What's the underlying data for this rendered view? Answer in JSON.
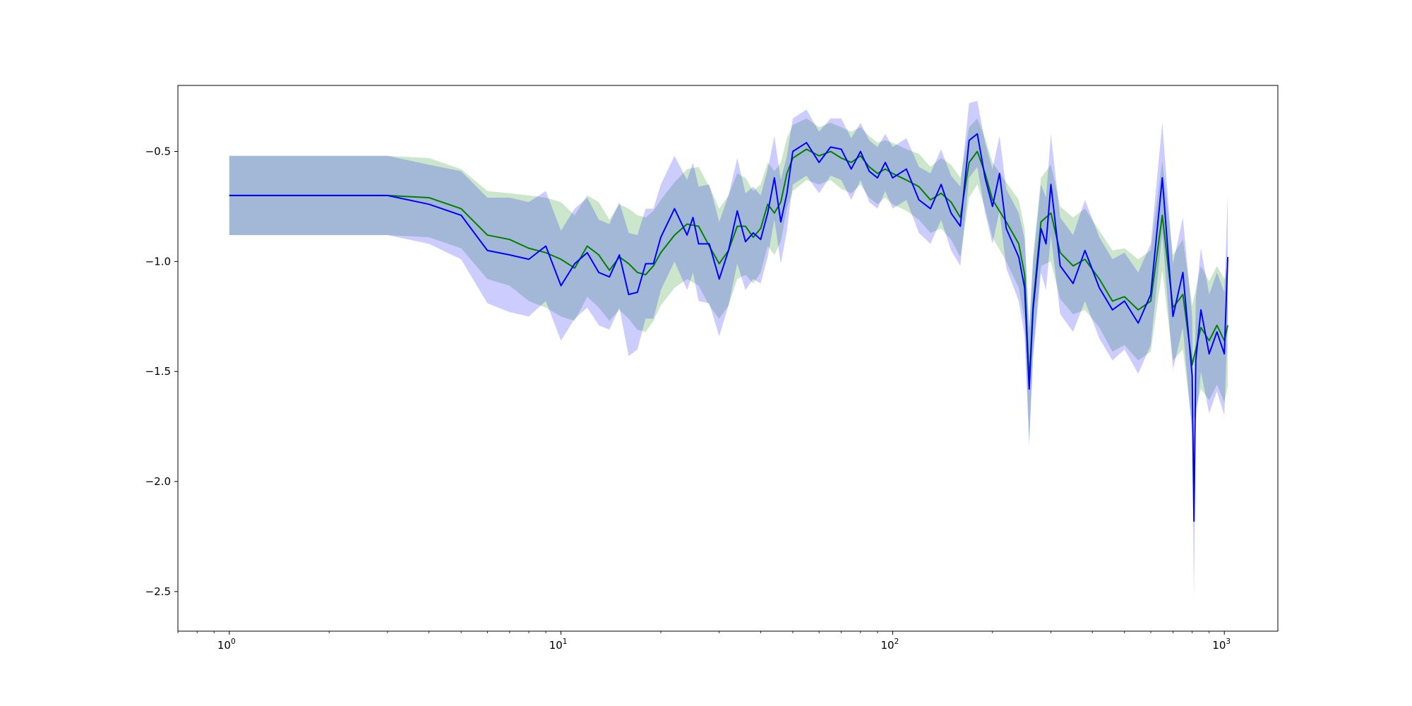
{
  "chart_data": {
    "type": "line",
    "title": "",
    "xlabel": "",
    "ylabel": "",
    "xscale": "log",
    "xlim": [
      0.7,
      1450
    ],
    "ylim": [
      -2.68,
      -0.2
    ],
    "grid": false,
    "legend": "none",
    "yticks": [
      -2.5,
      -2.0,
      -1.5,
      -1.0,
      -0.5
    ],
    "ytick_labels": [
      "−2.5",
      "−2.0",
      "−1.5",
      "−1.0",
      "−0.5"
    ],
    "xticks": [
      {
        "value": 1,
        "base": "10",
        "exp": "0"
      },
      {
        "value": 10,
        "base": "10",
        "exp": "1"
      },
      {
        "value": 100,
        "base": "10",
        "exp": "2"
      },
      {
        "value": 1000,
        "base": "10",
        "exp": "3"
      }
    ],
    "series": [
      {
        "color": "#008000",
        "band_color": "#008000",
        "band_opacity": 0.2,
        "points": [
          [
            1,
            -0.7,
            0.18
          ],
          [
            2,
            -0.7,
            0.18
          ],
          [
            3,
            -0.7,
            0.18
          ],
          [
            4,
            -0.71,
            0.18
          ],
          [
            5,
            -0.76,
            0.18
          ],
          [
            6,
            -0.88,
            0.2
          ],
          [
            7,
            -0.9,
            0.21
          ],
          [
            8,
            -0.94,
            0.24
          ],
          [
            9,
            -0.96,
            0.25
          ],
          [
            10,
            -0.99,
            0.26
          ],
          [
            11,
            -1.03,
            0.24
          ],
          [
            12,
            -0.93,
            0.23
          ],
          [
            13,
            -0.97,
            0.24
          ],
          [
            14,
            -1.04,
            0.23
          ],
          [
            15,
            -0.98,
            0.24
          ],
          [
            16,
            -1.01,
            0.25
          ],
          [
            17,
            -1.05,
            0.26
          ],
          [
            18,
            -1.06,
            0.26
          ],
          [
            19,
            -1.02,
            0.25
          ],
          [
            20,
            -0.96,
            0.24
          ],
          [
            22,
            -0.88,
            0.24
          ],
          [
            24,
            -0.83,
            0.25
          ],
          [
            26,
            -0.84,
            0.27
          ],
          [
            28,
            -0.93,
            0.27
          ],
          [
            30,
            -1.01,
            0.25
          ],
          [
            32,
            -0.95,
            0.25
          ],
          [
            34,
            -0.84,
            0.24
          ],
          [
            36,
            -0.84,
            0.22
          ],
          [
            38,
            -0.89,
            0.21
          ],
          [
            40,
            -0.85,
            0.2
          ],
          [
            42,
            -0.74,
            0.19
          ],
          [
            44,
            -0.78,
            0.19
          ],
          [
            46,
            -0.73,
            0.18
          ],
          [
            48,
            -0.6,
            0.16
          ],
          [
            50,
            -0.53,
            0.15
          ],
          [
            55,
            -0.49,
            0.14
          ],
          [
            60,
            -0.52,
            0.13
          ],
          [
            65,
            -0.5,
            0.13
          ],
          [
            70,
            -0.53,
            0.14
          ],
          [
            75,
            -0.55,
            0.14
          ],
          [
            80,
            -0.52,
            0.13
          ],
          [
            85,
            -0.57,
            0.14
          ],
          [
            90,
            -0.6,
            0.14
          ],
          [
            95,
            -0.58,
            0.13
          ],
          [
            100,
            -0.6,
            0.14
          ],
          [
            110,
            -0.63,
            0.14
          ],
          [
            120,
            -0.66,
            0.15
          ],
          [
            130,
            -0.72,
            0.15
          ],
          [
            140,
            -0.69,
            0.16
          ],
          [
            150,
            -0.73,
            0.17
          ],
          [
            160,
            -0.8,
            0.18
          ],
          [
            170,
            -0.55,
            0.16
          ],
          [
            180,
            -0.5,
            0.15
          ],
          [
            190,
            -0.6,
            0.16
          ],
          [
            200,
            -0.72,
            0.17
          ],
          [
            220,
            -0.82,
            0.18
          ],
          [
            240,
            -0.92,
            0.2
          ],
          [
            250,
            -1.06,
            0.21
          ],
          [
            258,
            -1.55,
            0.25
          ],
          [
            265,
            -1.2,
            0.22
          ],
          [
            280,
            -0.82,
            0.2
          ],
          [
            300,
            -0.78,
            0.22
          ],
          [
            320,
            -0.96,
            0.21
          ],
          [
            350,
            -1.02,
            0.22
          ],
          [
            380,
            -0.99,
            0.23
          ],
          [
            420,
            -1.08,
            0.22
          ],
          [
            460,
            -1.18,
            0.23
          ],
          [
            500,
            -1.16,
            0.22
          ],
          [
            550,
            -1.22,
            0.23
          ],
          [
            600,
            -1.18,
            0.23
          ],
          [
            650,
            -0.79,
            0.25
          ],
          [
            700,
            -1.21,
            0.24
          ],
          [
            750,
            -1.15,
            0.25
          ],
          [
            800,
            -1.47,
            0.27
          ],
          [
            850,
            -1.3,
            0.28
          ],
          [
            900,
            -1.36,
            0.27
          ],
          [
            950,
            -1.29,
            0.27
          ],
          [
            1000,
            -1.36,
            0.28
          ],
          [
            1024,
            -1.29,
            0.28
          ]
        ]
      },
      {
        "color": "#0000ff",
        "band_color": "#0000ff",
        "band_opacity": 0.2,
        "points": [
          [
            1,
            -0.7,
            0.18
          ],
          [
            2,
            -0.7,
            0.18
          ],
          [
            3,
            -0.7,
            0.18
          ],
          [
            4,
            -0.74,
            0.18
          ],
          [
            5,
            -0.79,
            0.2
          ],
          [
            6,
            -0.95,
            0.24
          ],
          [
            7,
            -0.97,
            0.26
          ],
          [
            8,
            -0.99,
            0.26
          ],
          [
            9,
            -0.93,
            0.25
          ],
          [
            10,
            -1.11,
            0.25
          ],
          [
            11,
            -1.01,
            0.25
          ],
          [
            12,
            -0.96,
            0.25
          ],
          [
            13,
            -1.05,
            0.24
          ],
          [
            14,
            -1.07,
            0.24
          ],
          [
            15,
            -0.97,
            0.24
          ],
          [
            16,
            -1.15,
            0.28
          ],
          [
            17,
            -1.14,
            0.26
          ],
          [
            18,
            -1.01,
            0.25
          ],
          [
            19,
            -1.01,
            0.25
          ],
          [
            20,
            -0.89,
            0.24
          ],
          [
            22,
            -0.76,
            0.24
          ],
          [
            24,
            -0.88,
            0.25
          ],
          [
            25,
            -0.8,
            0.25
          ],
          [
            26,
            -0.92,
            0.26
          ],
          [
            28,
            -0.92,
            0.27
          ],
          [
            30,
            -1.08,
            0.26
          ],
          [
            32,
            -0.95,
            0.25
          ],
          [
            34,
            -0.77,
            0.24
          ],
          [
            36,
            -0.91,
            0.22
          ],
          [
            38,
            -0.87,
            0.21
          ],
          [
            40,
            -0.9,
            0.2
          ],
          [
            42,
            -0.78,
            0.2
          ],
          [
            44,
            -0.62,
            0.19
          ],
          [
            46,
            -0.82,
            0.19
          ],
          [
            48,
            -0.69,
            0.17
          ],
          [
            50,
            -0.5,
            0.15
          ],
          [
            55,
            -0.46,
            0.15
          ],
          [
            60,
            -0.55,
            0.14
          ],
          [
            65,
            -0.48,
            0.13
          ],
          [
            70,
            -0.49,
            0.14
          ],
          [
            75,
            -0.58,
            0.14
          ],
          [
            80,
            -0.5,
            0.13
          ],
          [
            85,
            -0.59,
            0.14
          ],
          [
            90,
            -0.62,
            0.14
          ],
          [
            95,
            -0.55,
            0.13
          ],
          [
            100,
            -0.62,
            0.14
          ],
          [
            110,
            -0.58,
            0.14
          ],
          [
            120,
            -0.72,
            0.15
          ],
          [
            130,
            -0.76,
            0.16
          ],
          [
            140,
            -0.65,
            0.16
          ],
          [
            150,
            -0.78,
            0.17
          ],
          [
            160,
            -0.84,
            0.18
          ],
          [
            170,
            -0.45,
            0.17
          ],
          [
            180,
            -0.42,
            0.15
          ],
          [
            190,
            -0.62,
            0.16
          ],
          [
            200,
            -0.75,
            0.17
          ],
          [
            210,
            -0.6,
            0.17
          ],
          [
            220,
            -0.85,
            0.18
          ],
          [
            240,
            -0.98,
            0.2
          ],
          [
            250,
            -1.12,
            0.22
          ],
          [
            258,
            -1.58,
            0.26
          ],
          [
            265,
            -1.22,
            0.22
          ],
          [
            280,
            -0.85,
            0.2
          ],
          [
            290,
            -0.92,
            0.21
          ],
          [
            300,
            -0.65,
            0.23
          ],
          [
            320,
            -1.02,
            0.22
          ],
          [
            350,
            -1.1,
            0.22
          ],
          [
            380,
            -0.95,
            0.23
          ],
          [
            420,
            -1.12,
            0.23
          ],
          [
            460,
            -1.22,
            0.23
          ],
          [
            500,
            -1.18,
            0.22
          ],
          [
            550,
            -1.28,
            0.23
          ],
          [
            600,
            -1.15,
            0.23
          ],
          [
            650,
            -0.62,
            0.25
          ],
          [
            700,
            -1.25,
            0.24
          ],
          [
            750,
            -1.05,
            0.25
          ],
          [
            800,
            -1.52,
            0.27
          ],
          [
            810,
            -2.18,
            0.35
          ],
          [
            820,
            -1.45,
            0.28
          ],
          [
            850,
            -1.22,
            0.28
          ],
          [
            900,
            -1.42,
            0.27
          ],
          [
            950,
            -1.32,
            0.27
          ],
          [
            1000,
            -1.42,
            0.28
          ],
          [
            1024,
            -0.98,
            0.28
          ]
        ]
      }
    ]
  }
}
